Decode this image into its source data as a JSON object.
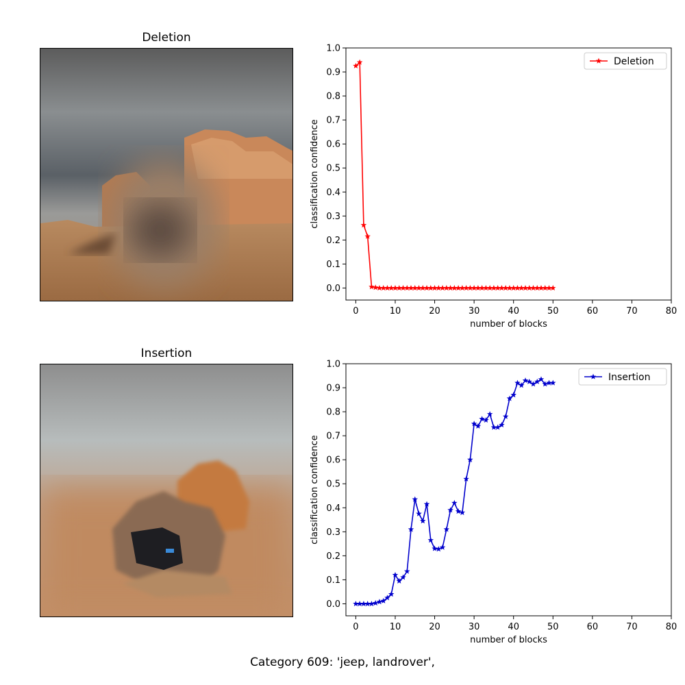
{
  "panels": {
    "deletion_title": "Deletion",
    "insertion_title": "Insertion"
  },
  "caption": "Category  609: 'jeep, landrover',",
  "chart_data": [
    {
      "type": "line",
      "series": [
        {
          "name": "Deletion",
          "color": "#ff0000",
          "marker": "star",
          "x": [
            0,
            1,
            2,
            3,
            4,
            5,
            6,
            7,
            8,
            9,
            10,
            11,
            12,
            13,
            14,
            15,
            16,
            17,
            18,
            19,
            20,
            21,
            22,
            23,
            24,
            25,
            26,
            27,
            28,
            29,
            30,
            31,
            32,
            33,
            34,
            35,
            36,
            37,
            38,
            39,
            40,
            41,
            42,
            43,
            44,
            45,
            46,
            47,
            48,
            49,
            50
          ],
          "values": [
            0.925,
            0.94,
            0.262,
            0.215,
            0.005,
            0.002,
            0,
            0,
            0,
            0,
            0,
            0,
            0,
            0,
            0,
            0,
            0,
            0,
            0,
            0,
            0,
            0,
            0,
            0,
            0,
            0,
            0,
            0,
            0,
            0,
            0,
            0,
            0,
            0,
            0,
            0,
            0,
            0,
            0,
            0,
            0,
            0,
            0,
            0,
            0,
            0,
            0,
            0,
            0,
            0,
            0
          ]
        }
      ],
      "xlabel": "number of blocks",
      "ylabel": "classification confidence",
      "xlim": [
        -2.5,
        80
      ],
      "ylim": [
        -0.05,
        1.0
      ],
      "xticks": [
        0,
        10,
        20,
        30,
        40,
        50,
        60,
        70,
        80
      ],
      "yticks": [
        0.0,
        0.1,
        0.2,
        0.3,
        0.4,
        0.5,
        0.6,
        0.7,
        0.8,
        0.9,
        1.0
      ],
      "legend": "top-right",
      "grid": false
    },
    {
      "type": "line",
      "series": [
        {
          "name": "Insertion",
          "color": "#0000cc",
          "marker": "star",
          "x": [
            0,
            1,
            2,
            3,
            4,
            5,
            6,
            7,
            8,
            9,
            10,
            11,
            12,
            13,
            14,
            15,
            16,
            17,
            18,
            19,
            20,
            21,
            22,
            23,
            24,
            25,
            26,
            27,
            28,
            29,
            30,
            31,
            32,
            33,
            34,
            35,
            36,
            37,
            38,
            39,
            40,
            41,
            42,
            43,
            44,
            45,
            46,
            47,
            48,
            49,
            50
          ],
          "values": [
            0.0,
            0.0,
            0.0,
            0.0,
            0.0,
            0.003,
            0.008,
            0.012,
            0.025,
            0.04,
            0.12,
            0.095,
            0.11,
            0.135,
            0.31,
            0.435,
            0.375,
            0.345,
            0.415,
            0.265,
            0.23,
            0.228,
            0.235,
            0.31,
            0.39,
            0.42,
            0.385,
            0.38,
            0.52,
            0.6,
            0.75,
            0.74,
            0.77,
            0.765,
            0.79,
            0.735,
            0.735,
            0.745,
            0.78,
            0.855,
            0.87,
            0.92,
            0.91,
            0.93,
            0.925,
            0.915,
            0.925,
            0.935,
            0.915,
            0.92,
            0.92
          ]
        }
      ],
      "xlabel": "number of blocks",
      "ylabel": "classification confidence",
      "xlim": [
        -2.5,
        80
      ],
      "ylim": [
        -0.05,
        1.0
      ],
      "xticks": [
        0,
        10,
        20,
        30,
        40,
        50,
        60,
        70,
        80
      ],
      "yticks": [
        0.0,
        0.1,
        0.2,
        0.3,
        0.4,
        0.5,
        0.6,
        0.7,
        0.8,
        0.9,
        1.0
      ],
      "legend": "top-right",
      "grid": false
    }
  ]
}
